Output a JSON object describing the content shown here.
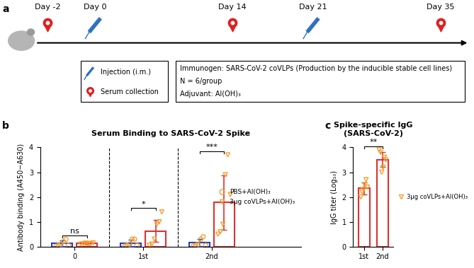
{
  "diagram": {
    "panel_label": "a",
    "timeline": [
      {
        "label": "Day -2",
        "event": "serum"
      },
      {
        "label": "Day 0",
        "event": "injection"
      },
      {
        "label": "Day 14",
        "event": "serum"
      },
      {
        "label": "Day 21",
        "event": "injection"
      },
      {
        "label": "Day 35",
        "event": "serum"
      }
    ],
    "legend": [
      {
        "event": "injection",
        "label": "Injection (i.m.)"
      },
      {
        "event": "serum",
        "label": "Serum collection"
      }
    ],
    "info": [
      "Immunogen: SARS-CoV-2 coVLPs (Production by the inducible stable cell lines)",
      "N = 6/group",
      "Adjuvant: Al(OH)₃"
    ]
  },
  "chart_data": [
    {
      "panel_label": "b",
      "type": "bar",
      "title": "Serum Binding to SARS-CoV-2 Spike",
      "y_label": "Antibody binding (A450−A630)",
      "categories": [
        "0",
        "1st",
        "2nd"
      ],
      "series": [
        {
          "name": "PBS+Al(OH)₃",
          "color": "#2540c0",
          "marker": "circle",
          "values": [
            0.12,
            0.13,
            0.15
          ],
          "errors": [
            0.12,
            0.14,
            0.15
          ],
          "points": [
            [
              0.02,
              0.05,
              0.1,
              0.2,
              0.3,
              0.05
            ],
            [
              0.02,
              0.05,
              0.1,
              0.3,
              0.3,
              0.05
            ],
            [
              0.02,
              0.05,
              0.1,
              0.3,
              0.4,
              0.05
            ]
          ]
        },
        {
          "name": "3μg coVLPs+Al(OH)₃",
          "color": "#e03030",
          "marker": "triangle_down",
          "values": [
            0.12,
            0.63,
            1.78
          ],
          "errors": [
            0.05,
            0.45,
            1.1
          ],
          "points": [
            [
              0.1,
              0.12,
              0.14,
              0.13,
              0.11,
              0.15
            ],
            [
              0.05,
              0.1,
              0.3,
              0.9,
              1.0,
              1.4
            ],
            [
              0.5,
              0.6,
              0.9,
              2.9,
              3.7,
              2.1
            ]
          ]
        }
      ],
      "ylim": [
        0,
        4
      ],
      "yticks": [
        0,
        1,
        2,
        3,
        4
      ],
      "legend": "center right",
      "annotations": [
        {
          "category": "0",
          "text": "ns"
        },
        {
          "category": "1st",
          "text": "*"
        },
        {
          "category": "2nd",
          "text": "***"
        }
      ]
    },
    {
      "panel_label": "c",
      "type": "bar",
      "title": "Spike-specific IgG\n(SARS-CoV-2)",
      "y_label": "IgG titer (Log₁₀)",
      "categories": [
        "1st",
        "2nd"
      ],
      "series": [
        {
          "name": "3μg coVLPs+Al(OH)₃",
          "color": "#e03030",
          "marker": "triangle_down",
          "values": [
            2.35,
            3.5
          ],
          "errors": [
            0.25,
            0.3
          ],
          "points": [
            [
              2.0,
              2.2,
              2.3,
              2.5,
              2.7,
              2.4
            ],
            [
              3.9,
              3.8,
              3.0,
              3.2,
              3.6,
              3.5
            ]
          ]
        }
      ],
      "ylim": [
        0,
        4
      ],
      "yticks": [
        0,
        1,
        2,
        3,
        4
      ],
      "legend": "center left",
      "annotations": [
        {
          "categories": [
            "1st",
            "2nd"
          ],
          "text": "**"
        }
      ]
    }
  ]
}
